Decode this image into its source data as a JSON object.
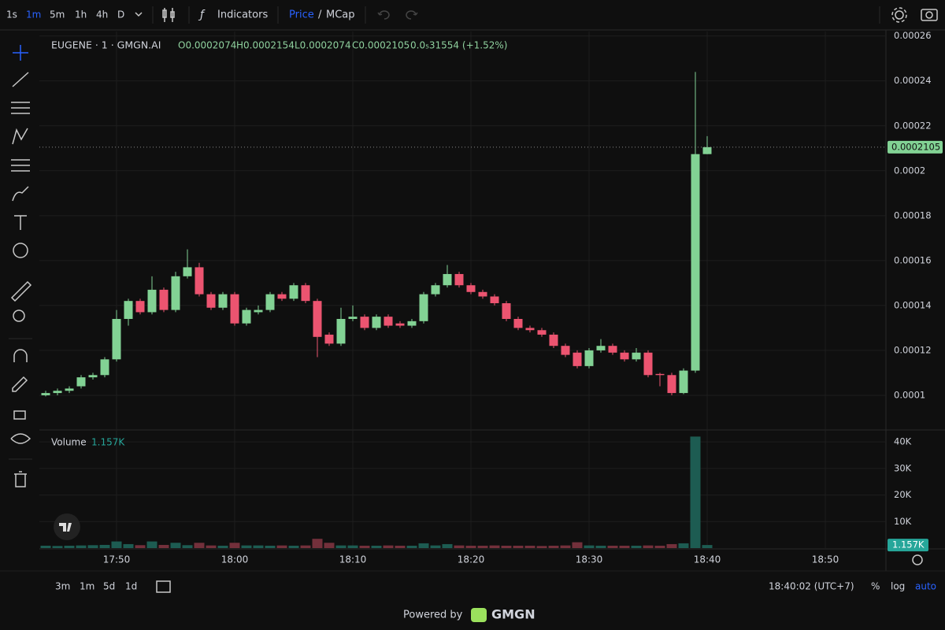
{
  "toolbar": {
    "intervals": [
      "1s",
      "1m",
      "5m",
      "1h",
      "4h",
      "D"
    ],
    "indicators": "Indicators",
    "price": "Price",
    "separator": "/",
    "mcap": "MCap"
  },
  "chart_data": {
    "type": "candlestick",
    "title": "EUGENE · 1 · GMGN.AI",
    "ohlc_legend": [
      "O0.0002074",
      "H0.0002154",
      "L0.0002074",
      "C0.0002105",
      "0.0₅31554 (+1.52%)"
    ],
    "x": [
      "17:44",
      "17:45",
      "17:46",
      "17:47",
      "17:48",
      "17:49",
      "17:50",
      "17:51",
      "17:52",
      "17:53",
      "17:54",
      "17:55",
      "17:56",
      "17:57",
      "17:58",
      "17:59",
      "18:00",
      "18:01",
      "18:02",
      "18:03",
      "18:04",
      "18:05",
      "18:06",
      "18:07",
      "18:08",
      "18:09",
      "18:10",
      "18:11",
      "18:12",
      "18:13",
      "18:14",
      "18:15",
      "18:16",
      "18:17",
      "18:18",
      "18:19",
      "18:20",
      "18:21",
      "18:22",
      "18:23",
      "18:24",
      "18:25",
      "18:26",
      "18:27",
      "18:28",
      "18:29",
      "18:30",
      "18:31",
      "18:32",
      "18:33",
      "18:34",
      "18:35",
      "18:36",
      "18:37",
      "18:38",
      "18:39",
      "18:40"
    ],
    "open": [
      0.0001,
      0.000101,
      0.000102,
      0.000104,
      0.000108,
      0.000109,
      0.000116,
      0.000134,
      0.000142,
      0.000137,
      0.000147,
      0.000138,
      0.000153,
      0.000157,
      0.000145,
      0.000139,
      0.000145,
      0.000132,
      0.000137,
      0.000138,
      0.000145,
      0.000143,
      0.000149,
      0.000142,
      0.000127,
      0.000123,
      0.000134,
      0.000135,
      0.00013,
      0.000135,
      0.000132,
      0.000131,
      0.000133,
      0.000145,
      0.000149,
      0.000154,
      0.000149,
      0.000146,
      0.000144,
      0.000141,
      0.000134,
      0.00013,
      0.000129,
      0.000127,
      0.000122,
      0.000119,
      0.000113,
      0.00012,
      0.000122,
      0.000119,
      0.000116,
      0.000119,
      0.0001095,
      0.000109,
      0.000101,
      0.000111,
      0.0002074
    ],
    "high": [
      0.000102,
      0.000103,
      0.000104,
      0.000109,
      0.00011,
      0.000117,
      0.000138,
      0.000143,
      0.000143,
      0.000153,
      0.000148,
      0.000155,
      0.000165,
      0.000159,
      0.000146,
      0.000146,
      0.000146,
      0.000139,
      0.00014,
      0.000146,
      0.000146,
      0.00015,
      0.00015,
      0.000143,
      0.000128,
      0.000139,
      0.00014,
      0.000136,
      0.000136,
      0.000136,
      0.000133,
      0.000134,
      0.000146,
      0.00015,
      0.000158,
      0.000155,
      0.00015,
      0.000147,
      0.000145,
      0.000142,
      0.000135,
      0.000131,
      0.00013,
      0.000128,
      0.000123,
      0.00012,
      0.000121,
      0.000125,
      0.000123,
      0.00012,
      0.000121,
      0.00012,
      0.00011,
      0.00011,
      0.000112,
      0.000244,
      0.0002154
    ],
    "low": [
      9.95e-05,
      0.0001,
      0.000101,
      0.000103,
      0.000107,
      0.000108,
      0.000115,
      0.000131,
      0.000136,
      0.000136,
      0.000137,
      0.000137,
      0.000152,
      0.000144,
      0.000138,
      0.000138,
      0.000131,
      0.000131,
      0.000136,
      0.000137,
      0.000142,
      0.000142,
      0.000141,
      0.000117,
      0.000122,
      0.000122,
      0.000133,
      0.000129,
      0.000129,
      0.00013,
      0.00013,
      0.00013,
      0.000132,
      0.000144,
      0.000148,
      0.000148,
      0.000145,
      0.000143,
      0.00014,
      0.000133,
      0.000129,
      0.000128,
      0.000126,
      0.000121,
      0.000117,
      0.000112,
      0.000112,
      0.000119,
      0.000118,
      0.000115,
      0.000115,
      0.000108,
      0.000104,
      0.0001,
      0.0001005,
      0.00011,
      0.0002074
    ],
    "close": [
      0.000101,
      0.000102,
      0.000103,
      0.000108,
      0.000109,
      0.000116,
      0.000134,
      0.000142,
      0.000137,
      0.000147,
      0.000138,
      0.000153,
      0.000157,
      0.000145,
      0.000139,
      0.000145,
      0.000132,
      0.000138,
      0.000138,
      0.000145,
      0.000143,
      0.000149,
      0.000142,
      0.000126,
      0.000123,
      0.000134,
      0.000135,
      0.00013,
      0.000135,
      0.000131,
      0.000131,
      0.000133,
      0.000145,
      0.000149,
      0.000154,
      0.000149,
      0.000146,
      0.000144,
      0.000141,
      0.000134,
      0.00013,
      0.000129,
      0.000127,
      0.000122,
      0.000118,
      0.000113,
      0.00012,
      0.000122,
      0.000119,
      0.000116,
      0.000119,
      0.000109,
      0.000109,
      0.000101,
      0.000111,
      0.0002074,
      0.0002105
    ],
    "volume_name": "Volume",
    "volume_last_label": "1.157K",
    "volume": [
      900,
      800,
      900,
      1000,
      1100,
      1200,
      2500,
      1500,
      1100,
      2500,
      1200,
      2000,
      1100,
      2000,
      1000,
      900,
      2000,
      1000,
      1000,
      900,
      1000,
      900,
      1000,
      3500,
      2000,
      1000,
      1000,
      900,
      900,
      1000,
      900,
      900,
      1800,
      1000,
      1500,
      1000,
      900,
      900,
      1000,
      900,
      900,
      900,
      800,
      900,
      1000,
      2200,
      1000,
      900,
      900,
      900,
      900,
      1000,
      900,
      1500,
      1800,
      42000,
      1157
    ],
    "ylim": [
      8.49e-05,
      0.000262
    ],
    "yticks": [
      0.0001,
      0.00012,
      0.00014,
      0.00016,
      0.00018,
      0.0002,
      0.00022,
      0.00024,
      0.00026
    ],
    "y2lim": [
      0,
      43900
    ],
    "y2ticks": [
      {
        "value": 10000,
        "label": "10K"
      },
      {
        "value": 20000,
        "label": "20K"
      },
      {
        "value": 30000,
        "label": "30K"
      },
      {
        "value": 40000,
        "label": "40K"
      }
    ],
    "xticks": [
      "17:50",
      "18:00",
      "18:10",
      "18:20",
      "18:30",
      "18:40",
      "18:50"
    ],
    "up_color": "#82d294",
    "down_color": "#ec5470",
    "volume_up_color": "#1d5c52",
    "volume_down_color": "#73303b",
    "grid": true
  },
  "bottom_bar": {
    "ranges": [
      "3m",
      "1m",
      "5d",
      "1d"
    ],
    "time": "18:40:02 (UTC+7)",
    "percent": "%",
    "log": "log",
    "auto": "auto"
  },
  "footer": {
    "powered": "Powered by",
    "brand": "GMGN"
  }
}
